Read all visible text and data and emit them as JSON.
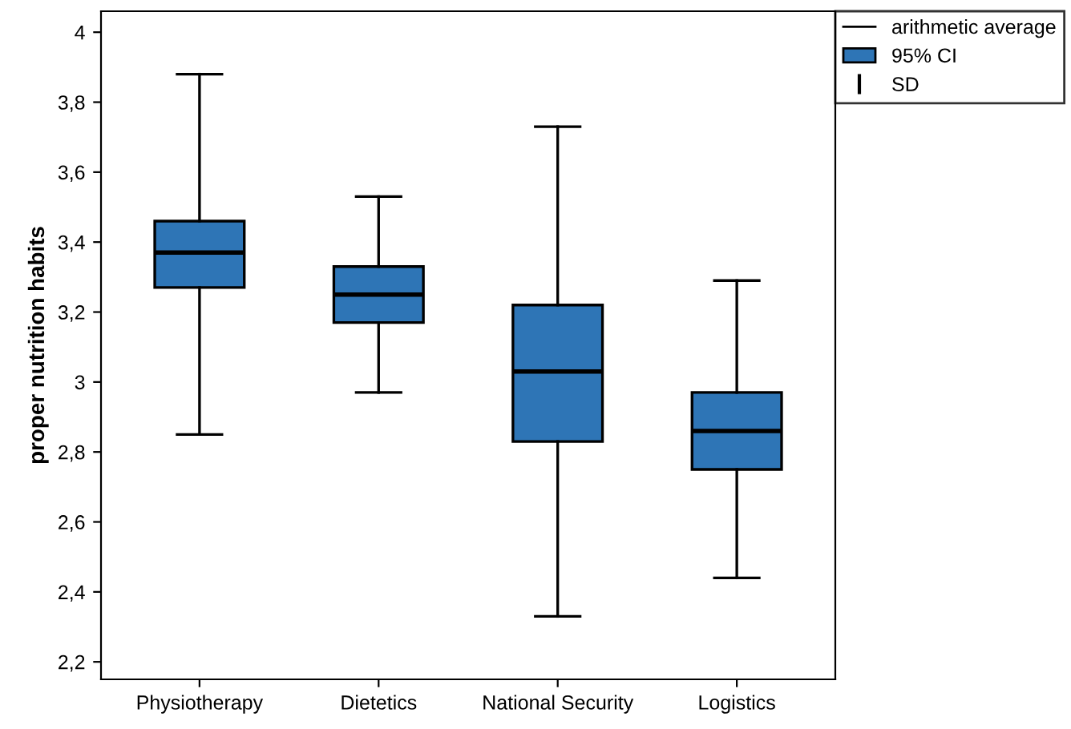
{
  "chart_data": {
    "type": "box",
    "ylabel": "proper nutrition habits",
    "categories": [
      "Physiotherapy",
      "Dietetics",
      "National Security",
      "Logistics"
    ],
    "series": [
      {
        "name": "95% CI",
        "color": "#2e75b6",
        "boxes": [
          {
            "low": 2.85,
            "q1": 3.27,
            "median": 3.37,
            "q3": 3.46,
            "high": 3.88
          },
          {
            "low": 2.97,
            "q1": 3.17,
            "median": 3.25,
            "q3": 3.33,
            "high": 3.53
          },
          {
            "low": 2.33,
            "q1": 2.83,
            "median": 3.03,
            "q3": 3.22,
            "high": 3.73
          },
          {
            "low": 2.44,
            "q1": 2.75,
            "median": 2.86,
            "q3": 2.97,
            "high": 3.29
          }
        ]
      }
    ],
    "annotations": [
      "arithmetic average",
      "SD"
    ],
    "ylim": [
      2.15,
      4.06
    ],
    "yticks": [
      {
        "value": 2.2,
        "label": "2,2"
      },
      {
        "value": 2.4,
        "label": "2,4"
      },
      {
        "value": 2.6,
        "label": "2,6"
      },
      {
        "value": 2.8,
        "label": "2,8"
      },
      3,
      {
        "value": 3.2,
        "label": "3,2"
      },
      {
        "value": 3.4,
        "label": "3,4"
      },
      {
        "value": 3.6,
        "label": "3,6"
      },
      {
        "value": 3.8,
        "label": "3,8"
      },
      4
    ],
    "grid": false,
    "legend": "top right"
  }
}
